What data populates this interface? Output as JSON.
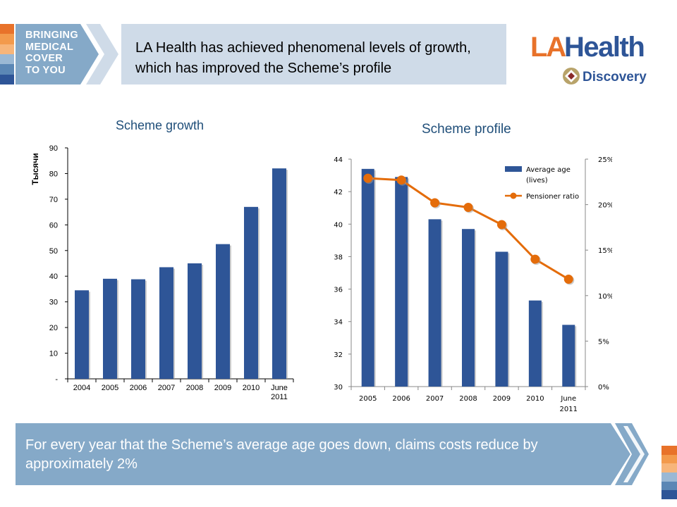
{
  "brand": {
    "tagline_lines": [
      "BRINGING",
      "MEDICAL",
      "COVER",
      "TO YOU"
    ],
    "logo_main": "LAHealth",
    "logo_sub": "Discovery"
  },
  "header": {
    "title": "LA Health has achieved phenomenal levels of growth, which has improved the Scheme’s profile"
  },
  "footer": {
    "text": "For every year that the Scheme’s average age goes down, claims costs reduce by approximately 2%"
  },
  "colors": {
    "bar_blue": "#2e5597",
    "line_orange": "#e46c0a",
    "title_blue": "#1f4e79",
    "banner_blue": "#85a9c8",
    "header_bg": "#cfdbe8",
    "stripe": [
      "#e8722a",
      "#f39a4c",
      "#f7b57a",
      "#9ab8d4",
      "#5b87b5",
      "#2e5597"
    ]
  },
  "chart_data": [
    {
      "type": "bar",
      "title": "Scheme growth",
      "ylabel": "Тысячи",
      "xlabel": "",
      "categories": [
        "2004",
        "2005",
        "2006",
        "2007",
        "2008",
        "2009",
        "2010",
        "June 2011"
      ],
      "values": [
        34.5,
        39,
        38.8,
        43.5,
        45,
        52.5,
        67,
        82
      ],
      "ylim": [
        0,
        90
      ],
      "yticks": [
        "-",
        "10",
        "20",
        "30",
        "40",
        "50",
        "60",
        "70",
        "80",
        "90"
      ],
      "grid": false,
      "legend": "none"
    },
    {
      "type": "bar",
      "title": "Scheme profile",
      "categories": [
        "2005",
        "2006",
        "2007",
        "2008",
        "2009",
        "2010",
        "June 2011"
      ],
      "series": [
        {
          "name": "Average age (lives)",
          "type": "bar",
          "axis": "left",
          "values": [
            43.4,
            42.9,
            40.3,
            39.7,
            38.3,
            35.3,
            33.8
          ]
        },
        {
          "name": "Pensioner ratio",
          "type": "line",
          "axis": "right",
          "values": [
            22.9,
            22.7,
            20.2,
            19.7,
            17.8,
            14.0,
            11.8
          ]
        }
      ],
      "ylim_left": [
        30,
        44
      ],
      "yticks_left": [
        "30",
        "32",
        "34",
        "36",
        "38",
        "40",
        "42",
        "44"
      ],
      "ylim_right": [
        0,
        25
      ],
      "yticks_right": [
        "0%",
        "5%",
        "10%",
        "15%",
        "20%",
        "25%"
      ],
      "grid": false,
      "legend": "top-right"
    }
  ]
}
